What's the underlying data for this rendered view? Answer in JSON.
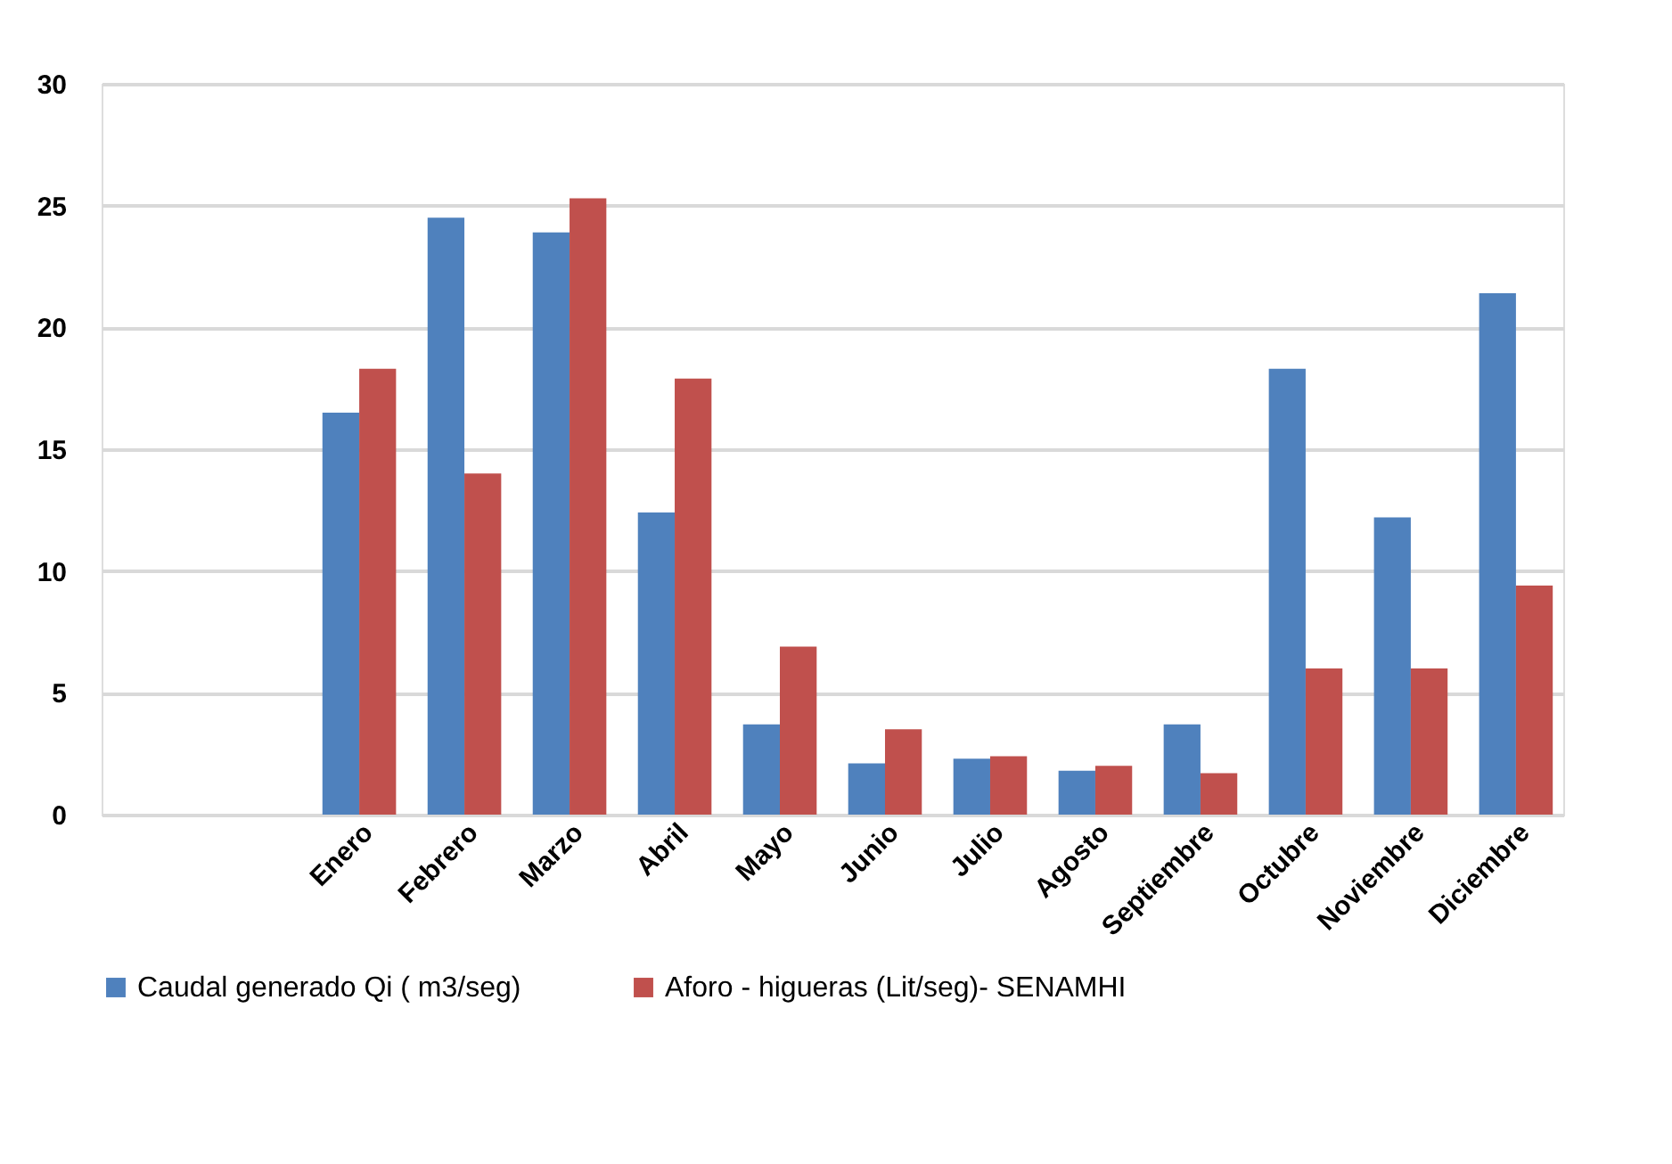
{
  "chart_data": {
    "type": "bar",
    "categories": [
      null,
      null,
      "Enero",
      "Febrero",
      "Marzo",
      "Abril",
      "Mayo",
      "Junio",
      "Julio",
      "Agosto",
      "Septiembre",
      "Octubre",
      "Noviembre",
      "Diciembre"
    ],
    "series": [
      {
        "name": "Caudal generado          Qi ( m3/seg)",
        "color": "#4f81bd",
        "values": [
          null,
          null,
          16.5,
          24.5,
          23.9,
          12.4,
          3.7,
          2.1,
          2.3,
          1.8,
          3.7,
          18.3,
          12.2,
          21.4
        ]
      },
      {
        "name": "Aforo - higueras (Lit/seg)- SENAMHI",
        "color": "#c0504d",
        "values": [
          null,
          null,
          18.3,
          14.0,
          25.3,
          17.9,
          6.9,
          3.5,
          2.4,
          2.0,
          1.7,
          6.0,
          6.0,
          9.4
        ]
      }
    ],
    "ylim": [
      0,
      30
    ],
    "yticks": [
      0,
      5,
      10,
      15,
      20,
      25,
      30
    ],
    "grid": "y",
    "legend": "bottom"
  }
}
